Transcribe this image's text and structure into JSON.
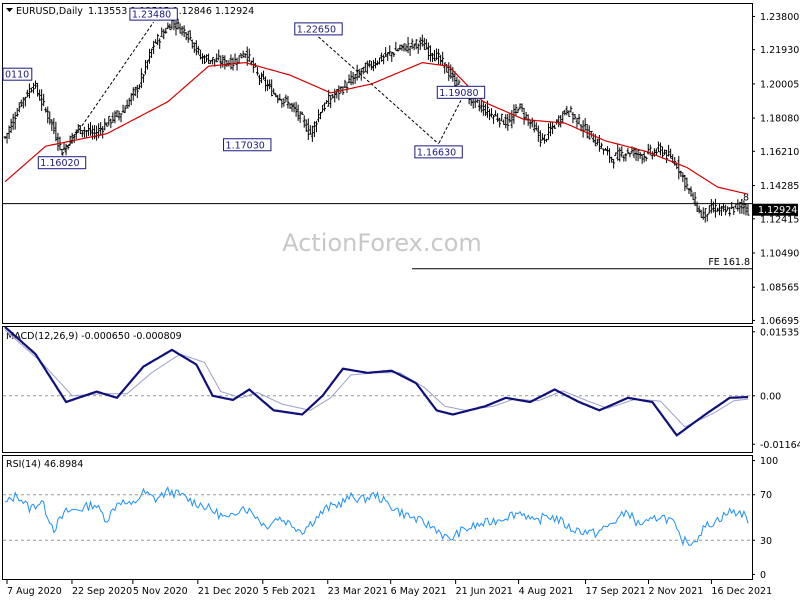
{
  "header": {
    "symbol": "EURUSD,Daily",
    "ohlc": "1.13553 1.13595 1.12846 1.12924"
  },
  "watermark": "ActionForex.com",
  "price_panel": {
    "ylim": [
      1.0655,
      1.245
    ],
    "y_ticks": [
      "1.23800",
      "1.21930",
      "1.20005",
      "1.18080",
      "1.16210",
      "1.14285",
      "1.12415",
      "1.10490",
      "1.08565",
      "1.06695"
    ],
    "y_tick_values": [
      1.238,
      1.2193,
      1.20005,
      1.1808,
      1.1621,
      1.14285,
      1.12415,
      1.1049,
      1.08565,
      1.06695
    ],
    "current_price_label": "1.12924",
    "current_price": 1.12924,
    "hline_price": 1.1327,
    "fe_line": {
      "label": "FE 161.8",
      "price": 1.096
    },
    "truncated_label": ".8",
    "annotations": [
      {
        "label": "0110",
        "x": 0,
        "price": 1.201
      },
      {
        "label": "1.16020",
        "x": 28,
        "price": 1.1602
      },
      {
        "label": "1.23480",
        "x": 73,
        "price": 1.2348
      },
      {
        "label": "1.17030",
        "x": 119,
        "price": 1.1703
      },
      {
        "label": "1.22650",
        "x": 154,
        "price": 1.2265
      },
      {
        "label": "1.16630",
        "x": 213,
        "price": 1.1663
      },
      {
        "label": "1.19080",
        "x": 224,
        "price": 1.1908
      }
    ]
  },
  "macd_panel": {
    "label": "MACD(12,26,9) -0.000650 -0.000809",
    "ylim": [
      -0.0135,
      0.0165
    ],
    "y_ticks": [
      "0.015359",
      "0.00",
      "-0.011645"
    ],
    "y_tick_values": [
      0.015359,
      0.0,
      -0.011645
    ]
  },
  "rsi_panel": {
    "label": "RSI(14) 46.8984",
    "ylim": [
      -4,
      104
    ],
    "y_ticks": [
      "100",
      "70",
      "30",
      "0"
    ],
    "y_tick_values": [
      100,
      70,
      30,
      0
    ]
  },
  "x_axis": {
    "ticks": [
      "7 Aug 2020",
      "22 Sep 2020",
      "5 Nov 2020",
      "21 Dec 2020",
      "5 Feb 2021",
      "23 Mar 2021",
      "6 May 2021",
      "21 Jun 2021",
      "4 Aug 2021",
      "17 Sep 2021",
      "2 Nov 2021",
      "16 Dec 2021"
    ],
    "tick_positions": [
      0,
      32,
      62,
      94,
      126,
      158,
      189,
      221,
      252,
      285,
      316,
      347
    ]
  },
  "chart_data": {
    "type": "line",
    "title": "EURUSD,Daily",
    "x_count": 366,
    "price_anchors": [
      [
        0,
        1.17
      ],
      [
        8,
        1.19
      ],
      [
        14,
        1.2
      ],
      [
        22,
        1.18
      ],
      [
        28,
        1.162
      ],
      [
        36,
        1.175
      ],
      [
        44,
        1.172
      ],
      [
        52,
        1.18
      ],
      [
        58,
        1.185
      ],
      [
        66,
        1.2
      ],
      [
        73,
        1.222
      ],
      [
        82,
        1.235
      ],
      [
        90,
        1.228
      ],
      [
        96,
        1.215
      ],
      [
        104,
        1.213
      ],
      [
        112,
        1.212
      ],
      [
        118,
        1.218
      ],
      [
        124,
        1.205
      ],
      [
        132,
        1.195
      ],
      [
        140,
        1.188
      ],
      [
        146,
        1.18
      ],
      [
        150,
        1.172
      ],
      [
        155,
        1.185
      ],
      [
        160,
        1.192
      ],
      [
        168,
        1.2
      ],
      [
        176,
        1.208
      ],
      [
        184,
        1.214
      ],
      [
        194,
        1.22
      ],
      [
        204,
        1.223
      ],
      [
        214,
        1.213
      ],
      [
        222,
        1.2
      ],
      [
        230,
        1.19
      ],
      [
        240,
        1.182
      ],
      [
        248,
        1.178
      ],
      [
        252,
        1.188
      ],
      [
        258,
        1.178
      ],
      [
        264,
        1.168
      ],
      [
        270,
        1.177
      ],
      [
        276,
        1.186
      ],
      [
        282,
        1.178
      ],
      [
        290,
        1.168
      ],
      [
        298,
        1.158
      ],
      [
        306,
        1.162
      ],
      [
        314,
        1.16
      ],
      [
        322,
        1.163
      ],
      [
        330,
        1.155
      ],
      [
        336,
        1.14
      ],
      [
        342,
        1.126
      ],
      [
        348,
        1.13
      ],
      [
        354,
        1.128
      ],
      [
        358,
        1.13
      ],
      [
        362,
        1.132
      ],
      [
        365,
        1.129
      ]
    ],
    "ma_anchors": [
      [
        0,
        1.145
      ],
      [
        20,
        1.165
      ],
      [
        50,
        1.172
      ],
      [
        80,
        1.19
      ],
      [
        100,
        1.21
      ],
      [
        118,
        1.212
      ],
      [
        140,
        1.205
      ],
      [
        160,
        1.195
      ],
      [
        180,
        1.2
      ],
      [
        205,
        1.212
      ],
      [
        218,
        1.21
      ],
      [
        235,
        1.19
      ],
      [
        255,
        1.18
      ],
      [
        275,
        1.178
      ],
      [
        295,
        1.168
      ],
      [
        315,
        1.162
      ],
      [
        335,
        1.153
      ],
      [
        350,
        1.142
      ],
      [
        365,
        1.138
      ]
    ],
    "macd_anchors": [
      [
        0,
        0.0165
      ],
      [
        15,
        0.01
      ],
      [
        30,
        -0.0015
      ],
      [
        45,
        0.001
      ],
      [
        55,
        -0.0005
      ],
      [
        68,
        0.007
      ],
      [
        82,
        0.011
      ],
      [
        94,
        0.0075
      ],
      [
        102,
        0.0
      ],
      [
        112,
        -0.001
      ],
      [
        120,
        0.0015
      ],
      [
        132,
        -0.0035
      ],
      [
        146,
        -0.0045
      ],
      [
        156,
        0.0
      ],
      [
        166,
        0.0065
      ],
      [
        178,
        0.0055
      ],
      [
        190,
        0.006
      ],
      [
        202,
        0.003
      ],
      [
        212,
        -0.0035
      ],
      [
        220,
        -0.0045
      ],
      [
        236,
        -0.0025
      ],
      [
        246,
        -0.0005
      ],
      [
        258,
        -0.0015
      ],
      [
        264,
        0.0
      ],
      [
        270,
        0.0015
      ],
      [
        282,
        -0.0015
      ],
      [
        292,
        -0.0035
      ],
      [
        306,
        -0.0005
      ],
      [
        318,
        -0.0015
      ],
      [
        330,
        -0.0095
      ],
      [
        344,
        -0.0045
      ],
      [
        356,
        -0.0005
      ],
      [
        365,
        -0.0003
      ]
    ],
    "signal_anchors": [
      [
        0,
        0.0158
      ],
      [
        18,
        0.008
      ],
      [
        33,
        0.0
      ],
      [
        48,
        0.0005
      ],
      [
        60,
        0.0005
      ],
      [
        72,
        0.0055
      ],
      [
        86,
        0.01
      ],
      [
        98,
        0.008
      ],
      [
        106,
        0.001
      ],
      [
        116,
        -0.0005
      ],
      [
        124,
        0.0008
      ],
      [
        136,
        -0.002
      ],
      [
        150,
        -0.0035
      ],
      [
        160,
        -0.0005
      ],
      [
        170,
        0.005
      ],
      [
        182,
        0.0055
      ],
      [
        194,
        0.0055
      ],
      [
        206,
        0.002
      ],
      [
        216,
        -0.0025
      ],
      [
        226,
        -0.0035
      ],
      [
        240,
        -0.0025
      ],
      [
        250,
        -0.0008
      ],
      [
        262,
        -0.0012
      ],
      [
        268,
        0.0
      ],
      [
        274,
        0.0012
      ],
      [
        286,
        -0.0012
      ],
      [
        296,
        -0.003
      ],
      [
        310,
        -0.0008
      ],
      [
        322,
        -0.0013
      ],
      [
        334,
        -0.0075
      ],
      [
        348,
        -0.0042
      ],
      [
        358,
        -0.0012
      ],
      [
        365,
        -0.0008
      ]
    ],
    "rsi_anchors": [
      [
        0,
        62
      ],
      [
        6,
        70
      ],
      [
        12,
        58
      ],
      [
        18,
        64
      ],
      [
        24,
        40
      ],
      [
        30,
        55
      ],
      [
        38,
        58
      ],
      [
        44,
        62
      ],
      [
        50,
        48
      ],
      [
        56,
        65
      ],
      [
        62,
        60
      ],
      [
        68,
        72
      ],
      [
        74,
        66
      ],
      [
        80,
        73
      ],
      [
        86,
        70
      ],
      [
        92,
        64
      ],
      [
        98,
        60
      ],
      [
        104,
        54
      ],
      [
        110,
        48
      ],
      [
        116,
        60
      ],
      [
        122,
        54
      ],
      [
        128,
        42
      ],
      [
        134,
        50
      ],
      [
        140,
        45
      ],
      [
        146,
        38
      ],
      [
        152,
        48
      ],
      [
        158,
        58
      ],
      [
        164,
        62
      ],
      [
        170,
        68
      ],
      [
        176,
        66
      ],
      [
        182,
        70
      ],
      [
        188,
        62
      ],
      [
        194,
        55
      ],
      [
        200,
        50
      ],
      [
        206,
        45
      ],
      [
        212,
        40
      ],
      [
        218,
        30
      ],
      [
        224,
        38
      ],
      [
        230,
        42
      ],
      [
        236,
        45
      ],
      [
        242,
        48
      ],
      [
        248,
        52
      ],
      [
        254,
        55
      ],
      [
        260,
        45
      ],
      [
        266,
        52
      ],
      [
        272,
        48
      ],
      [
        278,
        40
      ],
      [
        284,
        38
      ],
      [
        290,
        36
      ],
      [
        296,
        42
      ],
      [
        302,
        50
      ],
      [
        306,
        56
      ],
      [
        310,
        45
      ],
      [
        316,
        45
      ],
      [
        322,
        52
      ],
      [
        328,
        46
      ],
      [
        332,
        30
      ],
      [
        338,
        28
      ],
      [
        344,
        42
      ],
      [
        350,
        48
      ],
      [
        356,
        55
      ],
      [
        362,
        54
      ],
      [
        365,
        48
      ]
    ]
  }
}
